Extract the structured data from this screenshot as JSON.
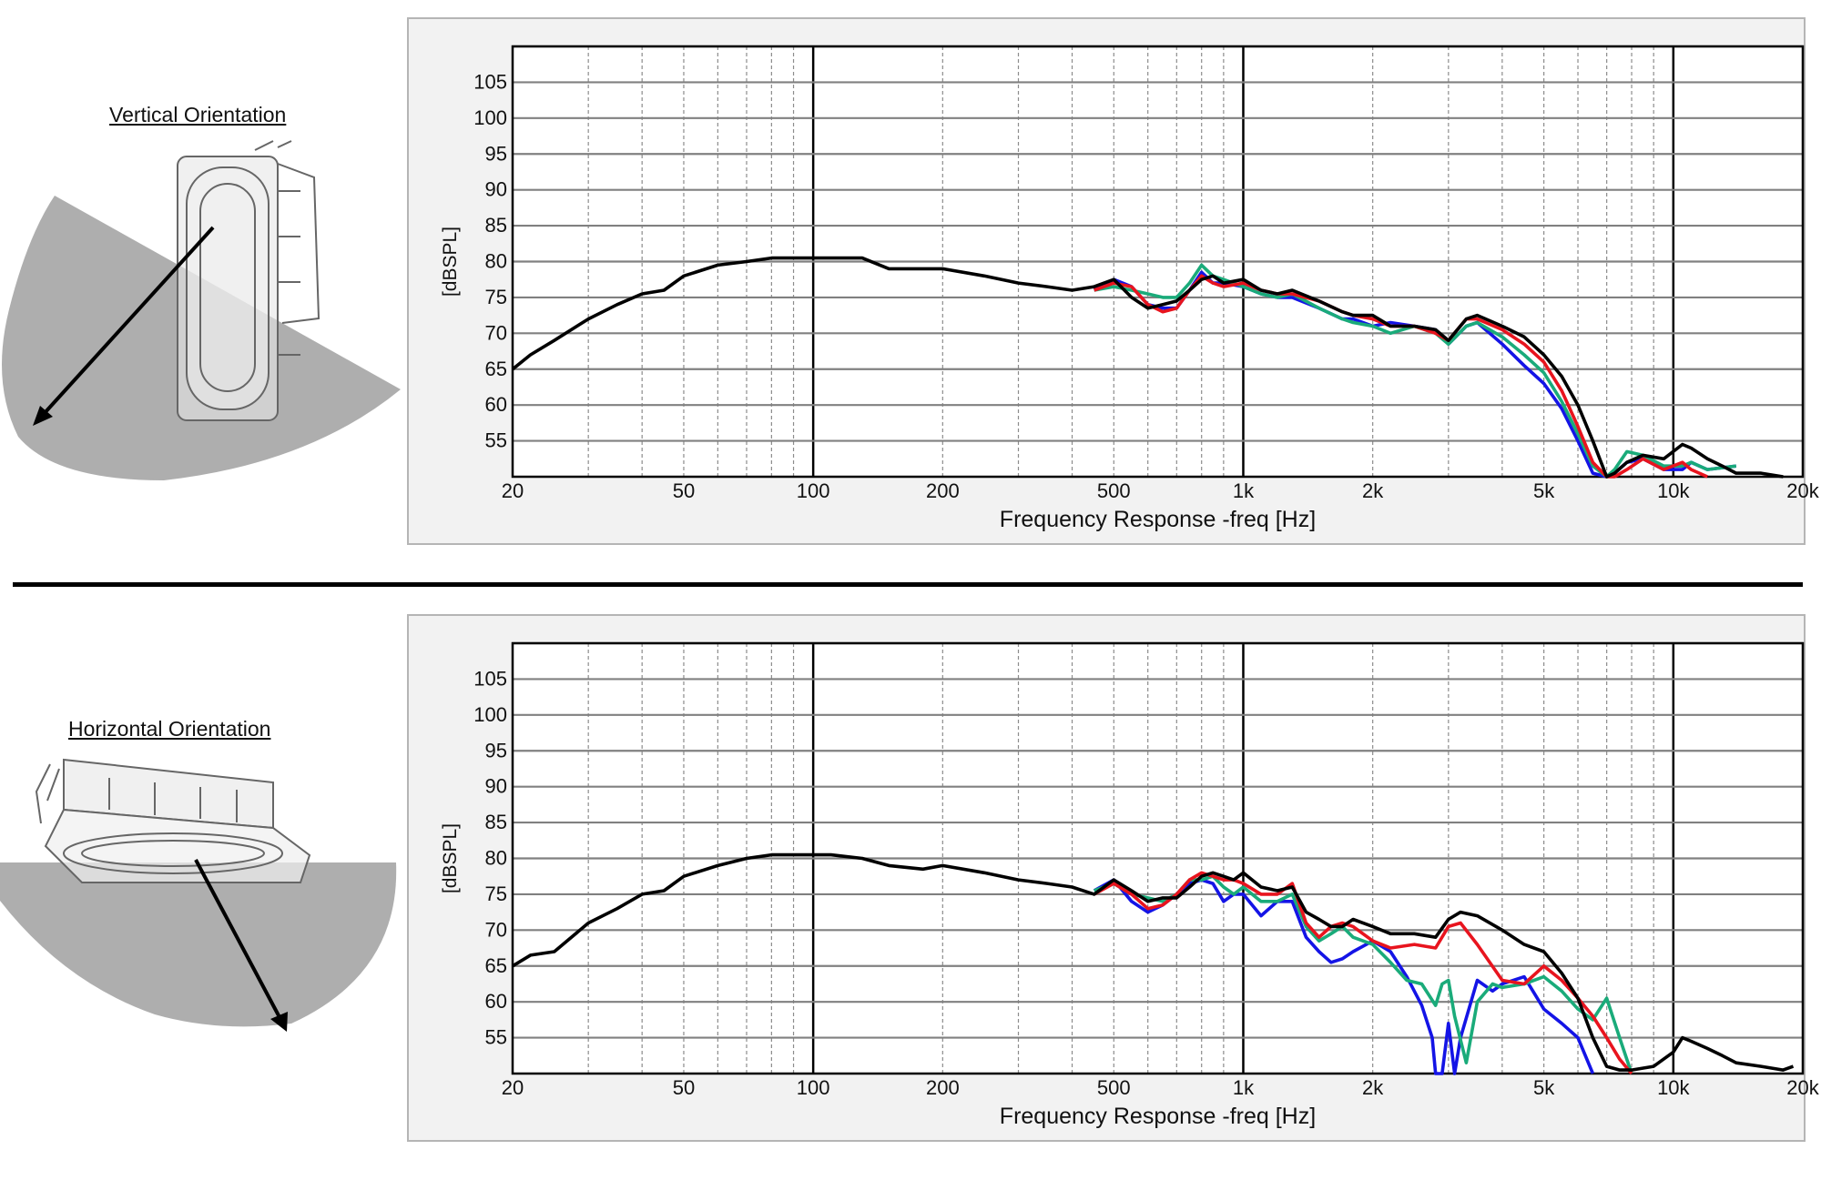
{
  "sections": [
    {
      "orientation_label": "Vertical Orientation"
    },
    {
      "orientation_label": "Horizontal Orientation"
    }
  ],
  "chart_data": [
    {
      "type": "line",
      "title": "",
      "xlabel": "Frequency Response -freq [Hz]",
      "ylabel": "[dBSPL]",
      "x_scale": "log",
      "xlim": [
        20,
        20000
      ],
      "ylim": [
        50,
        110
      ],
      "x_ticks": [
        20,
        50,
        100,
        200,
        500,
        1000,
        2000,
        5000,
        10000,
        20000
      ],
      "x_tick_labels": [
        "20",
        "50",
        "100",
        "200",
        "500",
        "1k",
        "2k",
        "5k",
        "10k",
        "20k"
      ],
      "y_ticks": [
        55,
        60,
        65,
        70,
        75,
        80,
        85,
        90,
        95,
        100,
        105
      ],
      "grid": true,
      "series": [
        {
          "color": "#000000",
          "x": [
            20,
            22,
            25,
            30,
            35,
            40,
            45,
            50,
            60,
            70,
            80,
            90,
            100,
            110,
            130,
            150,
            180,
            200,
            250,
            300,
            350,
            400,
            450,
            500,
            550,
            600,
            650,
            700,
            750,
            800,
            850,
            900,
            1000,
            1100,
            1200,
            1300,
            1500,
            1700,
            1800,
            2000,
            2200,
            2500,
            2800,
            3000,
            3300,
            3500,
            4000,
            4500,
            5000,
            5500,
            6000,
            6500,
            7000,
            7300,
            7800,
            8500,
            9500,
            10500,
            11000,
            12000,
            13000,
            14000,
            16000,
            18000
          ],
          "y": [
            65,
            67,
            69,
            72,
            74,
            75.5,
            76,
            78,
            79.5,
            80,
            80.5,
            80.5,
            80.5,
            80.5,
            80.5,
            79,
            79,
            79,
            78,
            77,
            76.5,
            76,
            76.5,
            77.5,
            75,
            73.5,
            74,
            74.5,
            76,
            77.5,
            78,
            77,
            77.5,
            76,
            75.5,
            76,
            74.5,
            73,
            72.5,
            72.5,
            71,
            71,
            70.5,
            69,
            72,
            72.5,
            71,
            69.5,
            67,
            64,
            60,
            55,
            50,
            50.5,
            52,
            53,
            52.5,
            54.5,
            54,
            52.5,
            51.5,
            50.5,
            50.5,
            50
          ]
        },
        {
          "color": "#e8141e",
          "x": [
            450,
            500,
            550,
            600,
            650,
            700,
            750,
            800,
            850,
            900,
            1000,
            1100,
            1200,
            1300,
            1500,
            1700,
            1800,
            2000,
            2200,
            2500,
            2800,
            3000,
            3300,
            3500,
            4000,
            4500,
            5000,
            5500,
            6000,
            6500,
            7000,
            7300,
            7800,
            8500,
            9500,
            10500,
            11000,
            12000
          ],
          "y": [
            76,
            77,
            76.5,
            74,
            73,
            73.5,
            76,
            78,
            77,
            76.5,
            77,
            76,
            75.5,
            75.5,
            74.5,
            73,
            72.5,
            72,
            71,
            71,
            70,
            69,
            72,
            72,
            70.5,
            68.5,
            66,
            62,
            57,
            52,
            50,
            50,
            51,
            52.5,
            51,
            52,
            51,
            50
          ]
        },
        {
          "color": "#1aab7a",
          "x": [
            450,
            500,
            550,
            600,
            650,
            700,
            750,
            800,
            850,
            900,
            1000,
            1100,
            1200,
            1300,
            1500,
            1700,
            1800,
            2000,
            2200,
            2500,
            2800,
            3000,
            3300,
            3500,
            4000,
            4500,
            5000,
            5500,
            6000,
            6500,
            7000,
            7300,
            7800,
            8500,
            9500,
            10500,
            11000,
            12000,
            14000
          ],
          "y": [
            76,
            76.5,
            76,
            75.5,
            75,
            75,
            77,
            79.5,
            78,
            77.5,
            76.5,
            75.5,
            75,
            75.5,
            73.5,
            72,
            71.5,
            71,
            70,
            71,
            70,
            68.5,
            71,
            71.5,
            69.5,
            67,
            64.5,
            60.5,
            56,
            51.5,
            50,
            51,
            53.5,
            53,
            51.5,
            51.5,
            52,
            51,
            51.5
          ]
        },
        {
          "color": "#1414e6",
          "x": [
            450,
            500,
            550,
            600,
            650,
            700,
            750,
            800,
            850,
            900,
            1000,
            1100,
            1200,
            1300,
            1500,
            1700,
            1800,
            2000,
            2200,
            2500,
            2800,
            3000,
            3300,
            3500,
            4000,
            4500,
            5000,
            5500,
            6000,
            6500,
            7000,
            7300,
            7800,
            8500,
            9500,
            10500,
            11000,
            12000,
            14000
          ],
          "y": [
            76,
            77.5,
            76.5,
            74,
            73.5,
            73.5,
            76,
            78.5,
            77,
            77,
            76.5,
            75.5,
            75,
            75,
            73.5,
            72,
            72,
            71,
            71.5,
            71,
            70.5,
            68.5,
            71,
            71.5,
            68.5,
            65.5,
            63,
            59.5,
            55,
            50.5,
            50,
            50.5,
            52,
            52.5,
            51,
            51,
            52,
            51,
            51.5
          ]
        }
      ]
    },
    {
      "type": "line",
      "title": "",
      "xlabel": "Frequency Response -freq [Hz]",
      "ylabel": "[dBSPL]",
      "x_scale": "log",
      "xlim": [
        20,
        20000
      ],
      "ylim": [
        50,
        110
      ],
      "x_ticks": [
        20,
        50,
        100,
        200,
        500,
        1000,
        2000,
        5000,
        10000,
        20000
      ],
      "x_tick_labels": [
        "20",
        "50",
        "100",
        "200",
        "500",
        "1k",
        "2k",
        "5k",
        "10k",
        "20k"
      ],
      "y_ticks": [
        55,
        60,
        65,
        70,
        75,
        80,
        85,
        90,
        95,
        100,
        105
      ],
      "grid": true,
      "series": [
        {
          "color": "#000000",
          "x": [
            20,
            22,
            25,
            30,
            35,
            40,
            45,
            50,
            60,
            70,
            80,
            90,
            100,
            110,
            130,
            150,
            180,
            200,
            250,
            300,
            350,
            400,
            450,
            500,
            550,
            600,
            650,
            700,
            750,
            800,
            850,
            900,
            950,
            1000,
            1100,
            1200,
            1300,
            1400,
            1500,
            1600,
            1700,
            1800,
            2000,
            2200,
            2500,
            2800,
            3000,
            3200,
            3500,
            4000,
            4500,
            5000,
            5500,
            6000,
            6500,
            7000,
            7500,
            8000,
            9000,
            10000,
            10500,
            11000,
            12000,
            13000,
            14000,
            16000,
            18000,
            19000
          ],
          "y": [
            65,
            66.5,
            67,
            71,
            73,
            75,
            75.5,
            77.5,
            79,
            80,
            80.5,
            80.5,
            80.5,
            80.5,
            80,
            79,
            78.5,
            79,
            78,
            77,
            76.5,
            76,
            75,
            77,
            75.5,
            74,
            74.5,
            74.5,
            76,
            77.5,
            78,
            77.5,
            77,
            78,
            76,
            75.5,
            76,
            72.5,
            71.5,
            70.5,
            70.5,
            71.5,
            70.5,
            69.5,
            69.5,
            69,
            71.5,
            72.5,
            72,
            70,
            68,
            67,
            64,
            60.5,
            55,
            51,
            50.5,
            50.5,
            51,
            53,
            55,
            54.5,
            53.5,
            52.5,
            51.5,
            51,
            50.5,
            51
          ]
        },
        {
          "color": "#e8141e",
          "x": [
            450,
            500,
            550,
            600,
            650,
            700,
            750,
            800,
            850,
            900,
            950,
            1000,
            1100,
            1200,
            1300,
            1400,
            1500,
            1600,
            1700,
            1800,
            2000,
            2200,
            2500,
            2800,
            3000,
            3200,
            3500,
            4000,
            4500,
            5000,
            5500,
            6000,
            6500,
            7000,
            7500,
            8000
          ],
          "y": [
            75,
            76.5,
            75,
            73,
            73.5,
            75,
            77,
            78,
            77.5,
            77,
            77,
            76.5,
            75,
            75,
            76.5,
            71,
            69,
            70.5,
            71,
            70.5,
            68.5,
            67.5,
            68,
            67.5,
            70.5,
            71,
            68,
            63,
            62.5,
            65,
            63,
            60.5,
            58,
            55,
            52,
            50
          ]
        },
        {
          "color": "#1aab7a",
          "x": [
            450,
            500,
            550,
            600,
            650,
            700,
            750,
            800,
            850,
            900,
            950,
            1000,
            1100,
            1200,
            1300,
            1400,
            1500,
            1600,
            1700,
            1800,
            2000,
            2200,
            2400,
            2600,
            2800,
            2900,
            3000,
            3100,
            3300,
            3500,
            3800,
            4000,
            4500,
            5000,
            5500,
            6000,
            6500,
            7000,
            7500,
            8000
          ],
          "y": [
            75.5,
            76.5,
            75,
            74.5,
            74,
            75,
            77,
            77,
            77.5,
            76,
            75,
            76,
            74,
            74,
            75,
            70.5,
            68.5,
            69.5,
            70.5,
            69,
            68,
            65.5,
            63,
            62.5,
            59.5,
            62.5,
            63,
            58,
            51.5,
            60,
            62.5,
            62,
            62.5,
            63.5,
            61.5,
            59,
            57.5,
            60.5,
            55,
            50
          ]
        },
        {
          "color": "#1414e6",
          "x": [
            450,
            500,
            550,
            600,
            650,
            700,
            750,
            800,
            850,
            900,
            950,
            1000,
            1100,
            1200,
            1300,
            1400,
            1500,
            1600,
            1700,
            1800,
            2000,
            2200,
            2400,
            2600,
            2750,
            2800,
            2900,
            3000,
            3100,
            3200,
            3500,
            3800,
            4000,
            4500,
            5000,
            5500,
            6000,
            6500
          ],
          "y": [
            75.5,
            77,
            74,
            72.5,
            73.5,
            75,
            76.5,
            77,
            76.5,
            74,
            75,
            75,
            72,
            74,
            74,
            69,
            67,
            65.5,
            66,
            67,
            68.5,
            67,
            63.5,
            59.5,
            55,
            50,
            50,
            57,
            50,
            55,
            63,
            61.5,
            62.5,
            63.5,
            59,
            57,
            55,
            50
          ]
        }
      ]
    }
  ]
}
